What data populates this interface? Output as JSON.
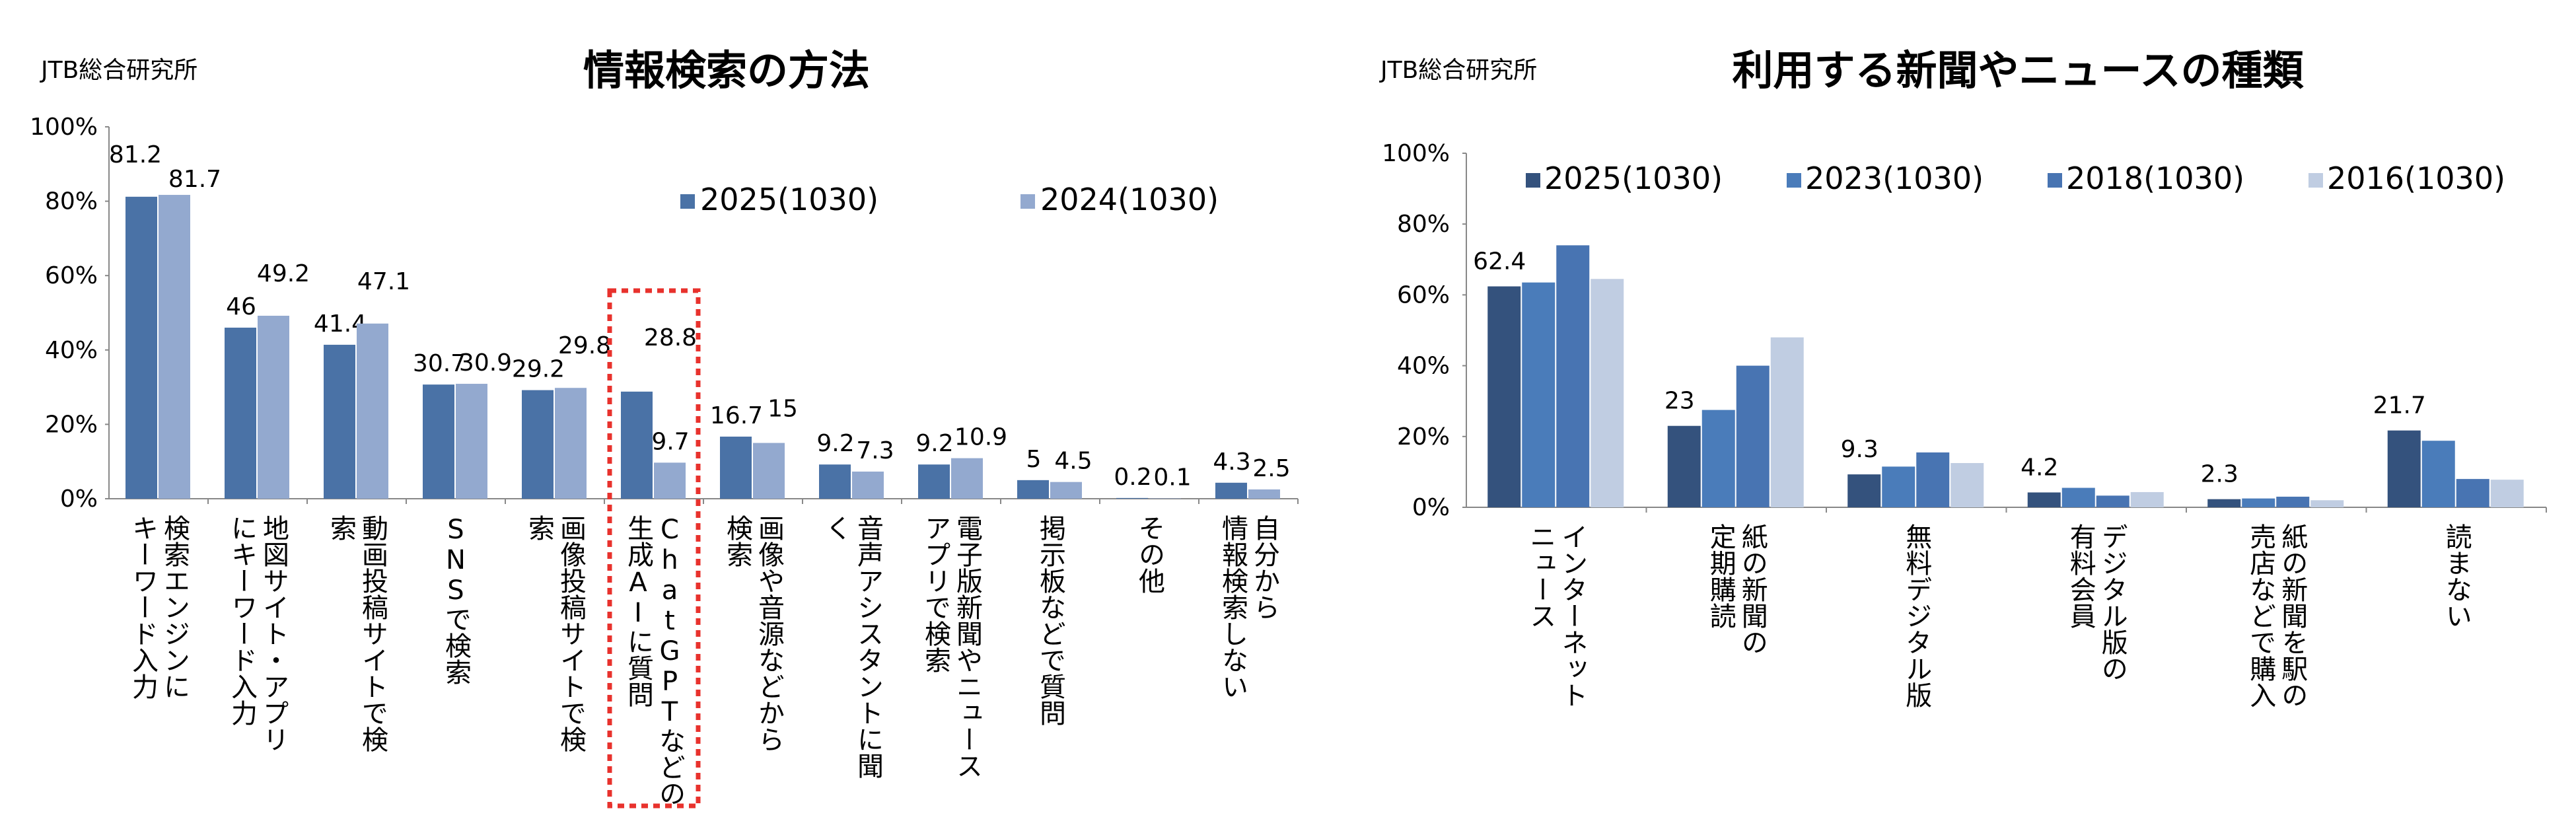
{
  "charts": [
    {
      "source": "JTB総合研究所",
      "chart_data": {
        "type": "bar",
        "title": "情報検索の方法",
        "categories": [
          [
            "検索エンジンに",
            "キーワード入力"
          ],
          [
            "地図サイト・アプリ",
            "にキーワード入力"
          ],
          [
            "動画投稿サイトで検",
            "索"
          ],
          [
            "SNSで検索"
          ],
          [
            "画像投稿サイトで検",
            "索"
          ],
          [
            "ChatGPTなどの",
            "生成AIに質問"
          ],
          [
            "画像や音源などから",
            "検索"
          ],
          [
            "音声アシスタントに聞",
            "く"
          ],
          [
            "電子版新聞やニュース",
            "アプリで検索"
          ],
          [
            "掲示板などで質問"
          ],
          [
            "その他"
          ],
          [
            "自分から",
            "情報検索しない"
          ]
        ],
        "series": [
          {
            "name": "2025(1030)",
            "values": [
              81.2,
              46.0,
              41.4,
              30.7,
              29.2,
              28.8,
              16.7,
              9.2,
              9.2,
              5.0,
              0.2,
              4.3
            ]
          },
          {
            "name": "2024(1030)",
            "values": [
              81.7,
              49.2,
              47.1,
              30.9,
              29.8,
              9.7,
              15.0,
              7.3,
              10.9,
              4.5,
              0.1,
              2.5
            ]
          }
        ],
        "yticks": [
          "0%",
          "20%",
          "40%",
          "60%",
          "80%",
          "100%"
        ],
        "ylim": [
          0,
          100
        ],
        "highlight_category": 5,
        "legend_position": "top-right"
      }
    },
    {
      "source": "JTB総合研究所",
      "chart_data": {
        "type": "bar",
        "title": "利用する新聞やニュースの種類",
        "categories": [
          [
            "インターネット",
            "ニュース"
          ],
          [
            "紙の新聞の",
            "定期購読"
          ],
          [
            "無料デジタル版"
          ],
          [
            "デジタル版の",
            "有料会員"
          ],
          [
            "紙の新聞を駅の",
            "売店などで購入"
          ],
          [
            "読まない"
          ]
        ],
        "series": [
          {
            "name": "2025(1030)",
            "values": [
              62.4,
              23.0,
              9.3,
              4.2,
              2.3,
              21.7
            ]
          },
          {
            "name": "2023(1030)",
            "values": [
              63.5,
              27.5,
              11.5,
              5.5,
              2.5,
              18.8
            ]
          },
          {
            "name": "2018(1030)",
            "values": [
              74.0,
              40.0,
              15.5,
              3.3,
              3.0,
              8.0
            ]
          },
          {
            "name": "2016(1030)",
            "values": [
              64.5,
              48.0,
              12.5,
              4.3,
              2.0,
              7.8
            ]
          }
        ],
        "labeled_series": 0,
        "yticks": [
          "0%",
          "20%",
          "40%",
          "60%",
          "80%",
          "100%"
        ],
        "ylim": [
          0,
          100
        ],
        "legend_position": "top"
      }
    }
  ],
  "colors": {
    "c1_series": [
      "#4a72a6",
      "#93a9cf"
    ],
    "c2_series": [
      "#34527d",
      "#4a7cba",
      "#4874b2",
      "#c0cde2"
    ],
    "highlight": "#e8322d",
    "axis": "#888888"
  }
}
